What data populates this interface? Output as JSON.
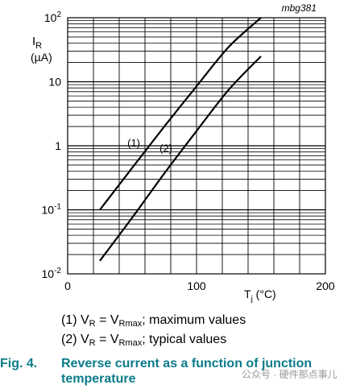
{
  "chart_data": {
    "type": "line",
    "code": "mbg381",
    "ylabel_sym": "I",
    "ylabel_sub": "R",
    "ylabel_unit": "(µA)",
    "xlabel_sym": "T",
    "xlabel_sub": "j",
    "xlabel_unit": " (°C)",
    "yscale": "log",
    "xlim": [
      0,
      200
    ],
    "ylim": [
      0.01,
      100
    ],
    "x_ticks": [
      "0",
      "100",
      "200"
    ],
    "y_ticks": [
      {
        "value": 100,
        "base": "10",
        "exp": "2"
      },
      {
        "value": 10,
        "base": "10",
        "exp": ""
      },
      {
        "value": 1,
        "base": "1",
        "exp": ""
      },
      {
        "value": 0.1,
        "base": "10",
        "exp": "-1"
      },
      {
        "value": 0.01,
        "base": "10",
        "exp": "-2"
      }
    ],
    "grid": true,
    "series": [
      {
        "name": "(1)",
        "x": [
          25,
          50,
          75,
          100,
          125,
          150
        ],
        "y": [
          0.1,
          0.45,
          2.0,
          8.5,
          35,
          100
        ]
      },
      {
        "name": "(2)",
        "x": [
          25,
          50,
          75,
          100,
          125,
          150
        ],
        "y": [
          0.016,
          0.075,
          0.37,
          1.7,
          7.5,
          25
        ]
      }
    ]
  },
  "legend": [
    {
      "prefix": "(1) V",
      "sub1": "R",
      "mid": " = V",
      "sub2": "Rmax",
      "suffix": "; maximum values"
    },
    {
      "prefix": "(2) V",
      "sub1": "R",
      "mid": " = V",
      "sub2": "Rmax",
      "suffix": "; typical values"
    }
  ],
  "caption": {
    "fig_number": "Fig. 4.",
    "text": "Reverse current as a function of junction temperature"
  },
  "watermark": "公众号 · 硬件那点事儿",
  "colors": {
    "caption": "#0b7b8a",
    "lines": "#000000",
    "grid": "#000000"
  }
}
